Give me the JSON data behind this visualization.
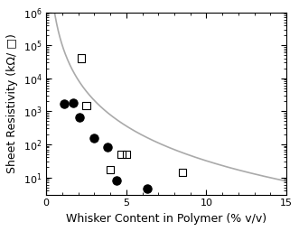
{
  "title": "",
  "xlabel": "Whisker Content in Polymer (% v/v)",
  "ylabel": "Sheet Resistivity (kΩ/ □)",
  "xlim": [
    0,
    15
  ],
  "ylim": [
    3,
    1000000.0
  ],
  "ps_data": [
    [
      1.1,
      1700
    ],
    [
      1.7,
      1800
    ],
    [
      2.1,
      650
    ],
    [
      3.0,
      150
    ],
    [
      3.8,
      80
    ],
    [
      4.4,
      8
    ],
    [
      6.3,
      4.5
    ]
  ],
  "peo_data": [
    [
      2.2,
      40000
    ],
    [
      2.5,
      1500
    ],
    [
      4.0,
      17
    ],
    [
      4.7,
      50
    ],
    [
      5.0,
      50
    ],
    [
      8.5,
      14
    ]
  ],
  "curve_A": 100000,
  "curve_n": 3.5,
  "curve_color": "#aaaaaa",
  "ps_color": "#000000",
  "peo_color": "#000000",
  "background_color": "#ffffff",
  "tick_label_size": 8,
  "axis_label_size": 9
}
